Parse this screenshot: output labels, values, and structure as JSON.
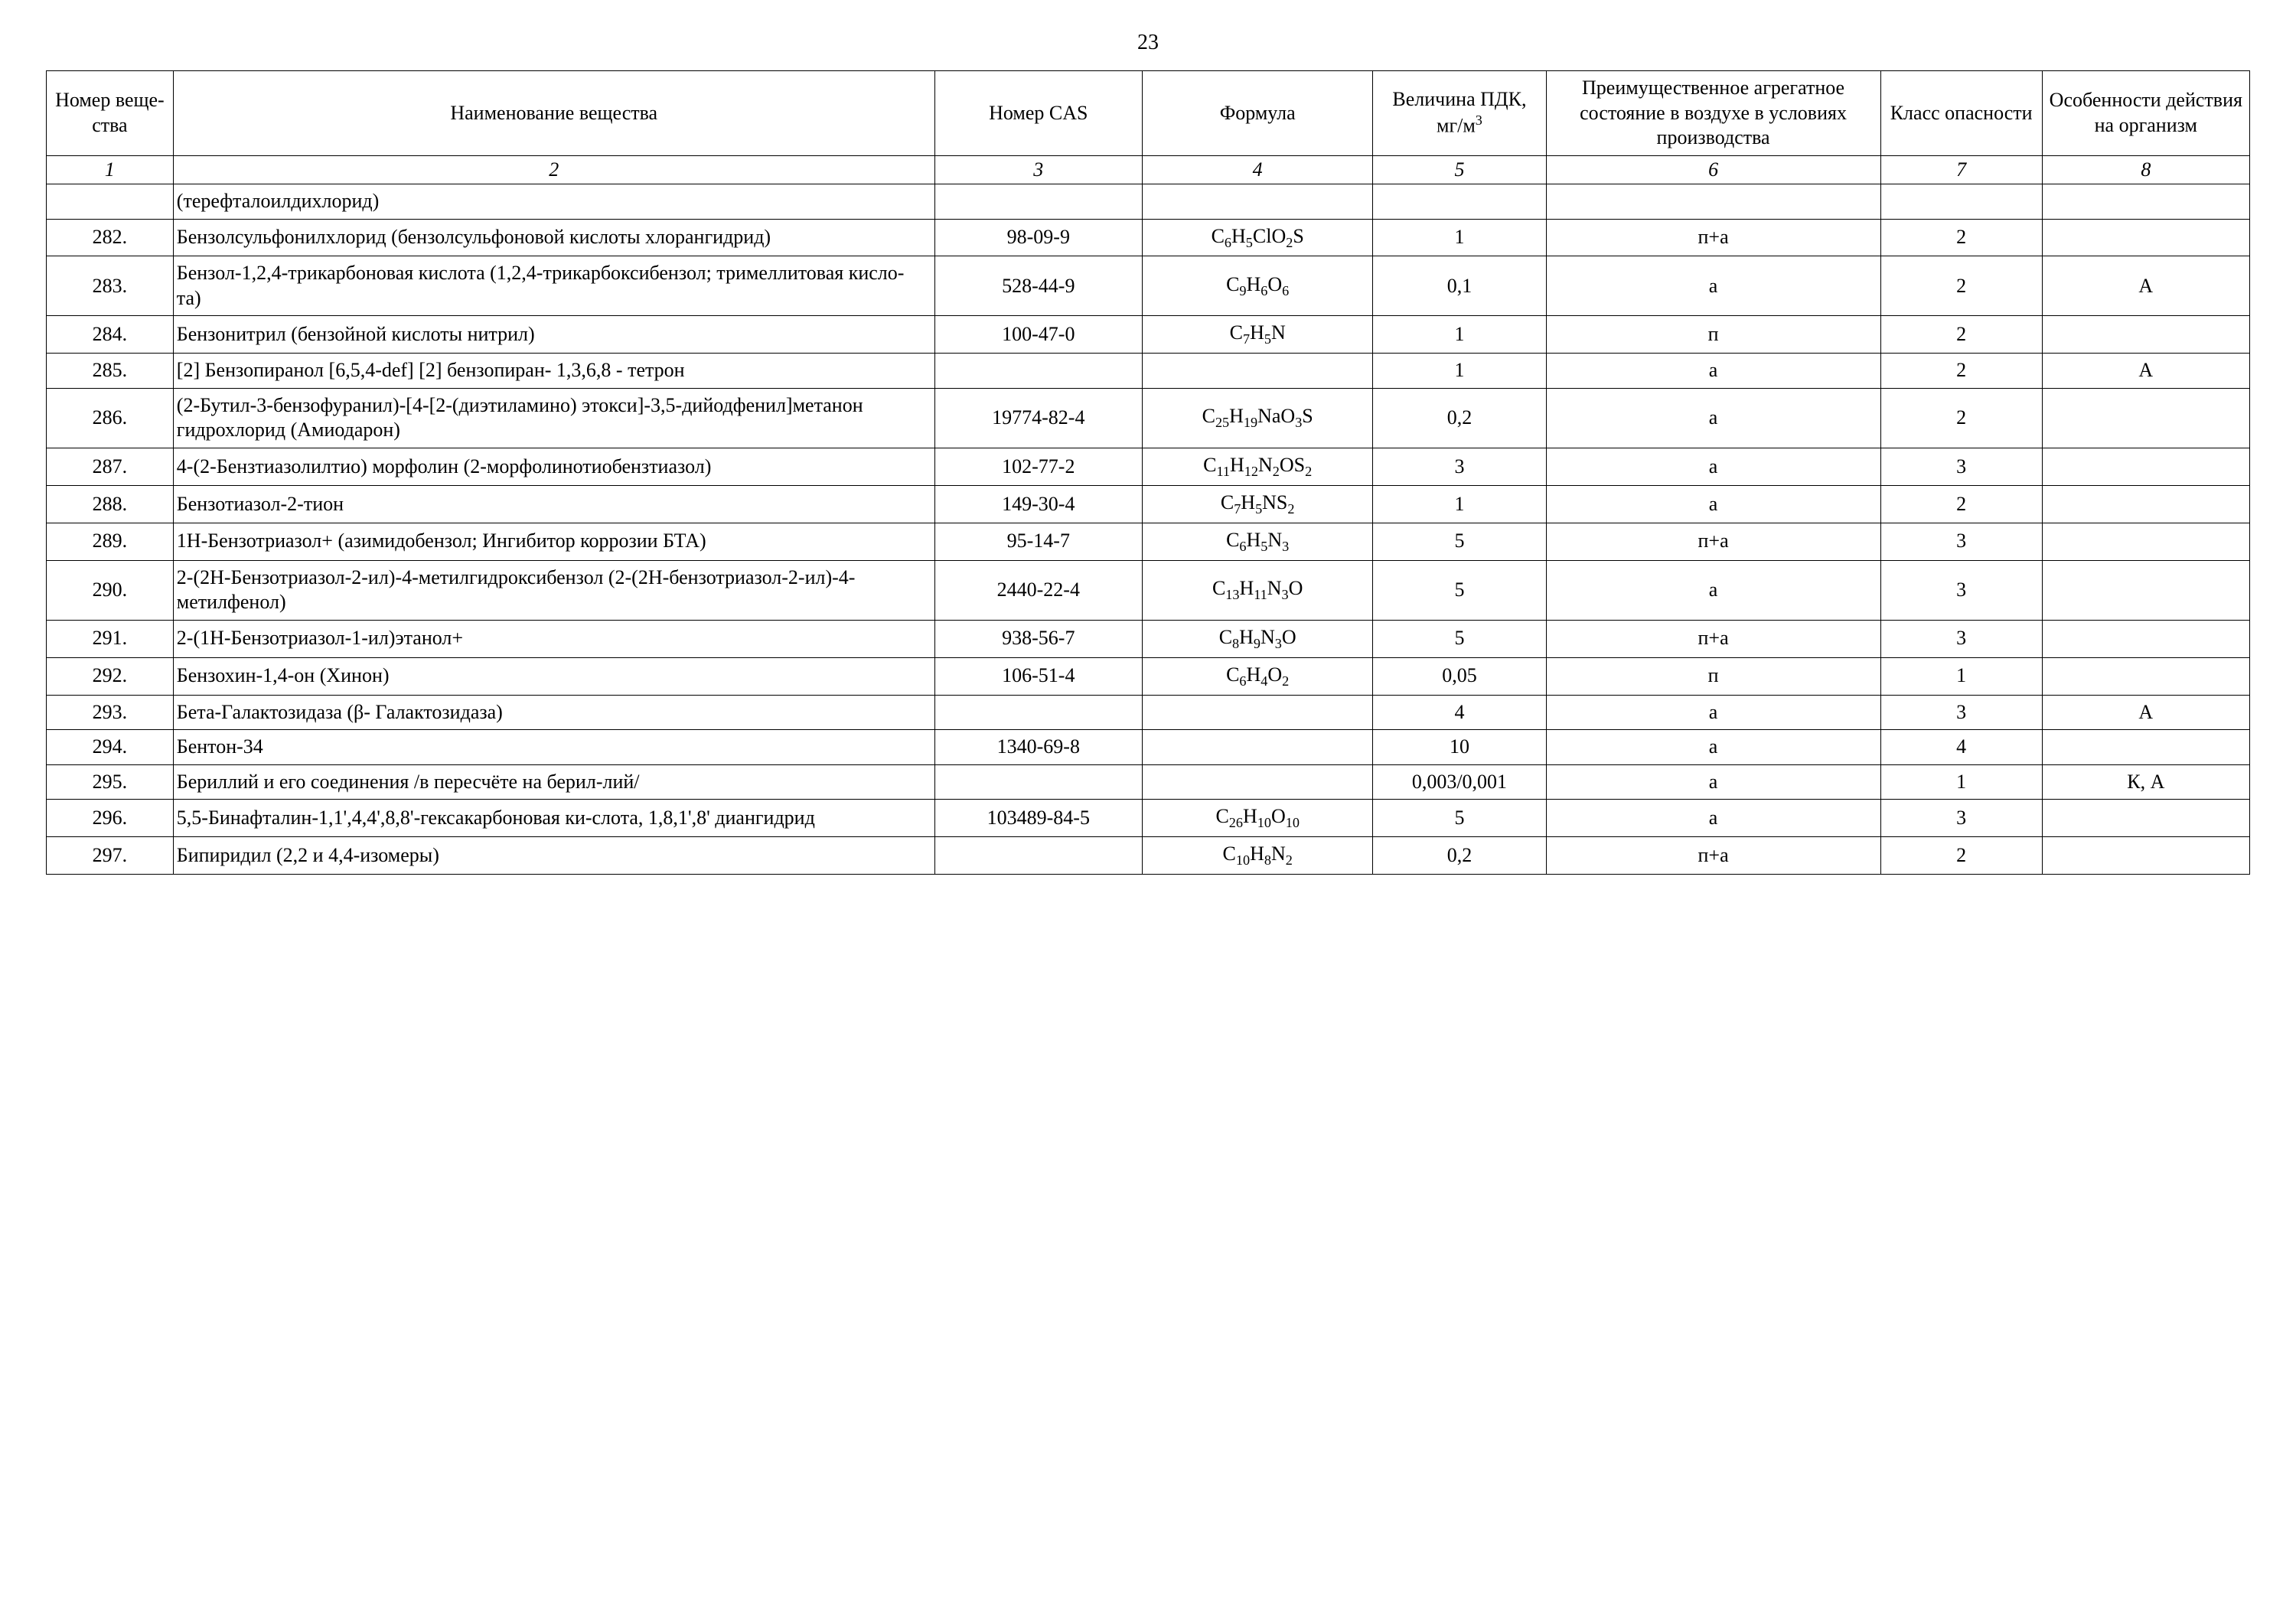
{
  "page_number": "23",
  "headers": {
    "c1": "Номер веще-ства",
    "c2": "Наименование вещества",
    "c3": "Номер CAS",
    "c4": "Формула",
    "c5_html": "Величина ПДК, мг/м<sup>3</sup>",
    "c6": "Преимущественное агрегатное состояние в воздухе в условиях производства",
    "c7": "Класс опасности",
    "c8": "Особенности действия на организм"
  },
  "idx": {
    "c1": "1",
    "c2": "2",
    "c3": "3",
    "c4": "4",
    "c5": "5",
    "c6": "6",
    "c7": "7",
    "c8": "8"
  },
  "rows": [
    {
      "num": "",
      "name": "(терефталоилдихлорид)",
      "cas": "",
      "formula_html": "",
      "pdk": "",
      "state": "",
      "class": "",
      "effect": ""
    },
    {
      "num": "282.",
      "name": "Бензолсульфонилхлорид (бензолсульфоновой кислоты хлорангидрид)",
      "cas": "98-09-9",
      "formula_html": "C<sub>6</sub>H<sub>5</sub>ClO<sub>2</sub>S",
      "pdk": "1",
      "state": "п+а",
      "class": "2",
      "effect": ""
    },
    {
      "num": "283.",
      "name": "Бензол-1,2,4-трикарбоновая кислота (1,2,4-трикарбоксибензол; тримеллитовая кисло-та)",
      "cas": "528-44-9",
      "formula_html": "C<sub>9</sub>H<sub>6</sub>O<sub>6</sub>",
      "pdk": "0,1",
      "state": "а",
      "class": "2",
      "effect": "А"
    },
    {
      "num": "284.",
      "name": "Бензонитрил (бензойной кислоты нитрил)",
      "cas": "100-47-0",
      "formula_html": "C<sub>7</sub>H<sub>5</sub>N",
      "pdk": "1",
      "state": "п",
      "class": "2",
      "effect": ""
    },
    {
      "num": "285.",
      "name": "[2] Бензопиранол [6,5,4-def] [2] бензопиран- 1,3,6,8 - тетрон",
      "cas": "",
      "formula_html": "",
      "pdk": "1",
      "state": "а",
      "class": "2",
      "effect": "А"
    },
    {
      "num": "286.",
      "name": "(2-Бутил-3-бензофуранил)-[4-[2-(диэтиламино) этокси]-3,5-дийодфенил]метанон гидрохлорид (Амиодарон)",
      "cas": "19774-82-4",
      "formula_html": "C<sub>25</sub>H<sub>19</sub>NaO<sub>3</sub>S",
      "pdk": "0,2",
      "state": "а",
      "class": "2",
      "effect": ""
    },
    {
      "num": "287.",
      "name": "4-(2-Бензтиазолилтио) морфолин (2-морфолинотиобензтиазол)",
      "cas": "102-77-2",
      "formula_html": "C<sub>11</sub>H<sub>12</sub>N<sub>2</sub>OS<sub>2</sub>",
      "pdk": "3",
      "state": "а",
      "class": "3",
      "effect": ""
    },
    {
      "num": "288.",
      "name": "Бензотиазол-2-тион",
      "cas": "149-30-4",
      "formula_html": "C<sub>7</sub>H<sub>5</sub>NS<sub>2</sub>",
      "pdk": "1",
      "state": "а",
      "class": "2",
      "effect": ""
    },
    {
      "num": "289.",
      "name": "1Н-Бензотриазол+ (азимидобензол; Ингибитор коррозии БТА)",
      "cas": "95-14-7",
      "formula_html": "C<sub>6</sub>H<sub>5</sub>N<sub>3</sub>",
      "pdk": "5",
      "state": "п+а",
      "class": "3",
      "effect": ""
    },
    {
      "num": "290.",
      "name": "2-(2Н-Бензотриазол-2-ил)-4-метилгидроксибензол (2-(2Н-бензотриазол-2-ил)-4-метилфенол)",
      "cas": "2440-22-4",
      "formula_html": "C<sub>13</sub>H<sub>11</sub>N<sub>3</sub>O",
      "pdk": "5",
      "state": "а",
      "class": "3",
      "effect": ""
    },
    {
      "num": "291.",
      "name": "2-(1Н-Бензотриазол-1-ил)этанол+",
      "cas": "938-56-7",
      "formula_html": "C<sub>8</sub>H<sub>9</sub>N<sub>3</sub>O",
      "pdk": "5",
      "state": "п+а",
      "class": "3",
      "effect": ""
    },
    {
      "num": "292.",
      "name": "Бензохин-1,4-он (Хинон)",
      "cas": "106-51-4",
      "formula_html": "C<sub>6</sub>H<sub>4</sub>O<sub>2</sub>",
      "pdk": "0,05",
      "state": "п",
      "class": "1",
      "effect": ""
    },
    {
      "num": "293.",
      "name": "Бета-Галактозидаза (β- Галактозидаза)",
      "cas": "",
      "formula_html": "",
      "pdk": "4",
      "state": "а",
      "class": "3",
      "effect": "А"
    },
    {
      "num": "294.",
      "name": "Бентон-34",
      "cas": "1340-69-8",
      "formula_html": "",
      "pdk": "10",
      "state": "а",
      "class": "4",
      "effect": ""
    },
    {
      "num": "295.",
      "name": "Бериллий и его соединения /в пересчёте на берил-лий/",
      "cas": "",
      "formula_html": "",
      "pdk": "0,003/0,001",
      "state": "а",
      "class": "1",
      "effect": "К, А"
    },
    {
      "num": "296.",
      "name": "5,5-Бинафталин-1,1',4,4',8,8'-гексакарбоновая ки-слота, 1,8,1',8' диангидрид",
      "cas": "103489-84-5",
      "formula_html": "C<sub>26</sub>H<sub>10</sub>O<sub>10</sub>",
      "pdk": "5",
      "state": "а",
      "class": "3",
      "effect": ""
    },
    {
      "num": "297.",
      "name": "Бипиридил (2,2 и 4,4-изомеры)",
      "cas": "",
      "formula_html": "C<sub>10</sub>H<sub>8</sub>N<sub>2</sub>",
      "pdk": "0,2",
      "state": "п+а",
      "class": "2",
      "effect": ""
    }
  ]
}
